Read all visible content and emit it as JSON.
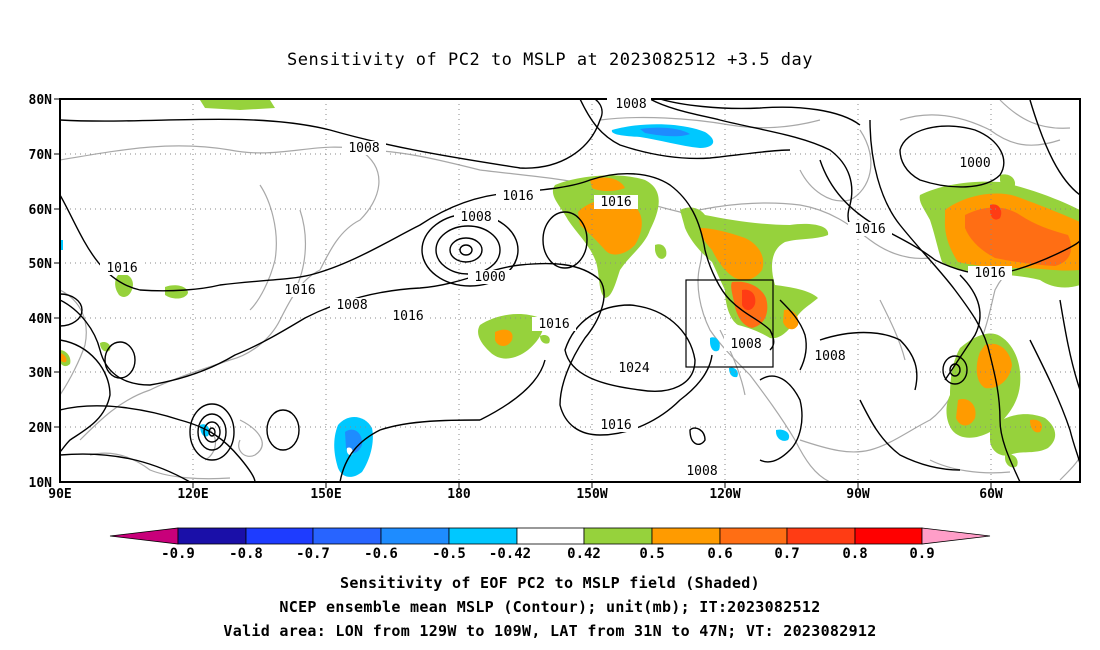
{
  "title": "Sensitivity of PC2 to MSLP at 2023082512 +3.5 day",
  "map": {
    "lat_labels": [
      "80N",
      "70N",
      "60N",
      "50N",
      "40N",
      "30N",
      "20N",
      "10N"
    ],
    "lon_labels": [
      "90E",
      "120E",
      "150E",
      "180",
      "150W",
      "120W",
      "90W",
      "60W"
    ],
    "contour_labels": [
      {
        "text": "1008"
      },
      {
        "text": "1008"
      },
      {
        "text": "1016"
      },
      {
        "text": "1016"
      },
      {
        "text": "1000"
      },
      {
        "text": "1016"
      },
      {
        "text": "1000"
      },
      {
        "text": "1008"
      },
      {
        "text": "1016"
      },
      {
        "text": "1016"
      },
      {
        "text": "1008"
      },
      {
        "text": "1016"
      },
      {
        "text": "1016"
      },
      {
        "text": "1024"
      },
      {
        "text": "1008"
      },
      {
        "text": "1008"
      },
      {
        "text": "1016"
      },
      {
        "text": "1016"
      },
      {
        "text": "1008"
      }
    ],
    "valid_area": "LON 129W-109W, LAT 31N-47N"
  },
  "colorbar": {
    "labels": [
      "-0.9",
      "-0.8",
      "-0.7",
      "-0.6",
      "-0.5",
      "-0.42",
      "0.42",
      "0.5",
      "0.6",
      "0.7",
      "0.8",
      "0.9"
    ],
    "colors": [
      "#c8007a",
      "#1a0fa8",
      "#1e3cff",
      "#2864ff",
      "#1e8cff",
      "#00c8ff",
      "#ffffff",
      "#96d23c",
      "#ff9b00",
      "#ff6e14",
      "#ff3c14",
      "#ff0000",
      "#ff9ec8"
    ]
  },
  "footer": {
    "line1": "Sensitivity of EOF PC2 to MSLP field (Shaded)",
    "line2": "NCEP ensemble mean MSLP (Contour); unit(mb); IT:2023082512",
    "line3": "Valid area: LON from 129W to 109W, LAT from 31N to 47N; VT: 2023082912"
  }
}
